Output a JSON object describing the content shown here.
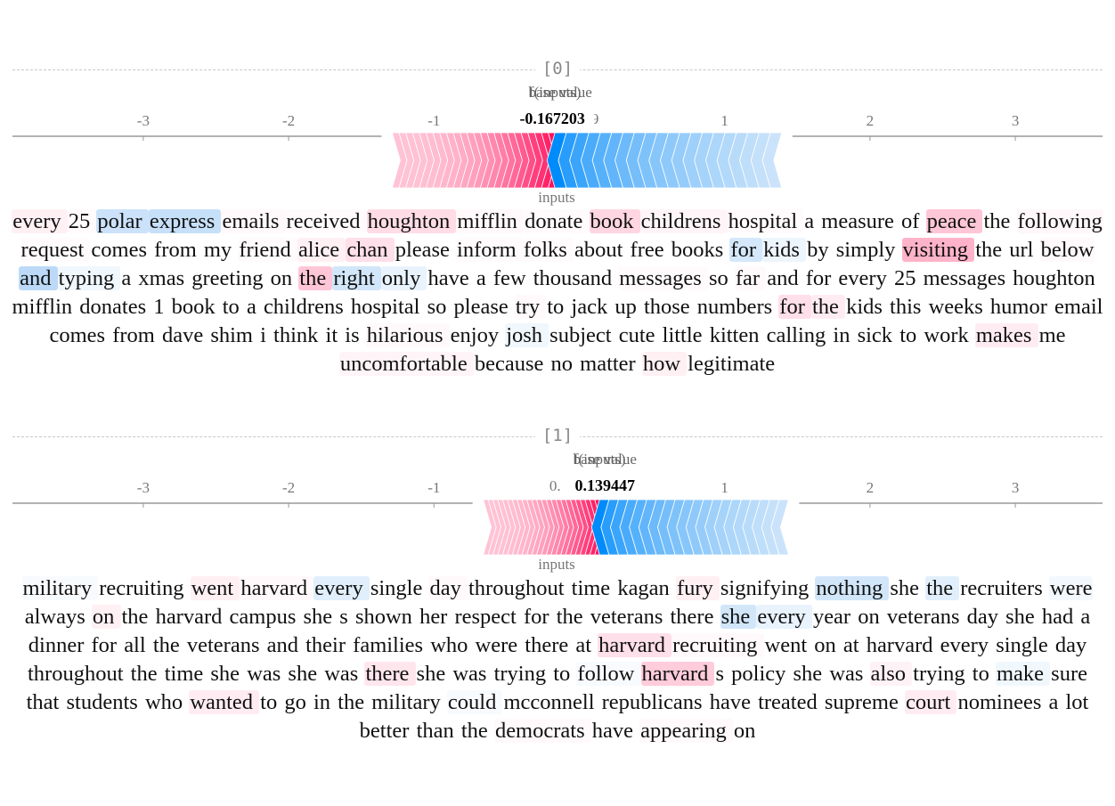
{
  "chart_data": [
    {
      "type": "force-plot",
      "title": "[0]",
      "x_ticks": [
        -3,
        -2,
        -1,
        1,
        2,
        3
      ],
      "xlim": [
        -3.9,
        3.6
      ],
      "fx_label": "f(inputs)",
      "base_label": "base value",
      "fx_value": "-0.167203",
      "base_value_text": "0.379",
      "fx": -0.167203,
      "base": 0.379,
      "neg_extent": 1.12,
      "pos_extent": 1.56,
      "inputs_label": "inputs",
      "colors": {
        "pos_strong": "#ff0051",
        "pos_light": "#ffc3d5",
        "neg_strong": "#008bfb",
        "neg_light": "#d1e6fa"
      },
      "tokens": [
        {
          "t": "every ",
          "v": 0.12
        },
        {
          "t": "25 ",
          "v": 0.04
        },
        {
          "t": "polar ",
          "v": -0.35
        },
        {
          "t": "express ",
          "v": -0.38
        },
        {
          "t": "emails ",
          "v": 0.05
        },
        {
          "t": "received ",
          "v": 0.03
        },
        {
          "t": "houghton ",
          "v": 0.28
        },
        {
          "t": "mifflin ",
          "v": 0.05
        },
        {
          "t": "donate ",
          "v": 0.03
        },
        {
          "t": "book ",
          "v": 0.32
        },
        {
          "t": "childrens ",
          "v": 0.08
        },
        {
          "t": "hospital ",
          "v": 0.04
        },
        {
          "t": "a ",
          "v": 0.0
        },
        {
          "t": "measure ",
          "v": 0.0
        },
        {
          "t": "of ",
          "v": 0.0
        },
        {
          "t": "peace ",
          "v": 0.45
        },
        {
          "t": "the ",
          "v": 0.0
        },
        {
          "t": "following ",
          "v": 0.06
        },
        {
          "t": "request ",
          "v": 0.03
        },
        {
          "t": "comes ",
          "v": 0.0
        },
        {
          "t": "from ",
          "v": 0.0
        },
        {
          "t": "my ",
          "v": 0.0
        },
        {
          "t": "friend ",
          "v": 0.03
        },
        {
          "t": "alice ",
          "v": 0.12
        },
        {
          "t": "chan ",
          "v": 0.25
        },
        {
          "t": "please ",
          "v": 0.0
        },
        {
          "t": "inform ",
          "v": 0.03
        },
        {
          "t": "folks ",
          "v": 0.03
        },
        {
          "t": "about ",
          "v": 0.0
        },
        {
          "t": "free ",
          "v": 0.0
        },
        {
          "t": "books ",
          "v": 0.0
        },
        {
          "t": "for ",
          "v": -0.28
        },
        {
          "t": "kids ",
          "v": -0.12
        },
        {
          "t": "by ",
          "v": 0.0
        },
        {
          "t": "simply ",
          "v": 0.0
        },
        {
          "t": "visiting ",
          "v": 0.6
        },
        {
          "t": "the ",
          "v": 0.0
        },
        {
          "t": "url ",
          "v": 0.0
        },
        {
          "t": "below ",
          "v": 0.05
        },
        {
          "t": "and ",
          "v": -0.45
        },
        {
          "t": "typing ",
          "v": -0.1
        },
        {
          "t": "a ",
          "v": 0.0
        },
        {
          "t": "xmas ",
          "v": 0.0
        },
        {
          "t": "greeting ",
          "v": 0.0
        },
        {
          "t": "on ",
          "v": 0.0
        },
        {
          "t": "the ",
          "v": 0.45
        },
        {
          "t": "right ",
          "v": -0.3
        },
        {
          "t": "only ",
          "v": -0.15
        },
        {
          "t": "have ",
          "v": 0.0
        },
        {
          "t": "a ",
          "v": 0.0
        },
        {
          "t": "few ",
          "v": 0.0
        },
        {
          "t": "thousand ",
          "v": 0.0
        },
        {
          "t": "messages ",
          "v": 0.03
        },
        {
          "t": "so ",
          "v": 0.0
        },
        {
          "t": "far ",
          "v": 0.05
        },
        {
          "t": "and ",
          "v": 0.0
        },
        {
          "t": "for ",
          "v": 0.0
        },
        {
          "t": "every ",
          "v": 0.0
        },
        {
          "t": "25 ",
          "v": 0.0
        },
        {
          "t": "messages ",
          "v": 0.0
        },
        {
          "t": "houghton ",
          "v": 0.0
        },
        {
          "t": "mifflin ",
          "v": 0.0
        },
        {
          "t": "donates ",
          "v": 0.0
        },
        {
          "t": "1 ",
          "v": 0.0
        },
        {
          "t": "book ",
          "v": 0.0
        },
        {
          "t": "to ",
          "v": 0.0
        },
        {
          "t": "a ",
          "v": 0.0
        },
        {
          "t": "childrens ",
          "v": 0.0
        },
        {
          "t": "hospital ",
          "v": 0.0
        },
        {
          "t": "so ",
          "v": 0.0
        },
        {
          "t": "please ",
          "v": 0.0
        },
        {
          "t": "try ",
          "v": 0.05
        },
        {
          "t": "to ",
          "v": 0.0
        },
        {
          "t": "jack ",
          "v": 0.0
        },
        {
          "t": "up ",
          "v": 0.0
        },
        {
          "t": "those ",
          "v": 0.0
        },
        {
          "t": "numbers ",
          "v": 0.0
        },
        {
          "t": "for ",
          "v": 0.25
        },
        {
          "t": "the ",
          "v": 0.15
        },
        {
          "t": "kids ",
          "v": 0.0
        },
        {
          "t": "this ",
          "v": 0.0
        },
        {
          "t": "weeks ",
          "v": 0.0
        },
        {
          "t": "humor ",
          "v": 0.0
        },
        {
          "t": "email ",
          "v": 0.0
        },
        {
          "t": "comes ",
          "v": 0.0
        },
        {
          "t": "from ",
          "v": 0.0
        },
        {
          "t": "dave ",
          "v": 0.0
        },
        {
          "t": "shim ",
          "v": 0.0
        },
        {
          "t": "i ",
          "v": 0.0
        },
        {
          "t": "think ",
          "v": 0.0
        },
        {
          "t": "it ",
          "v": 0.0
        },
        {
          "t": "is ",
          "v": 0.0
        },
        {
          "t": "hilarious ",
          "v": 0.05
        },
        {
          "t": "enjoy ",
          "v": 0.0
        },
        {
          "t": "josh ",
          "v": -0.1
        },
        {
          "t": "subject ",
          "v": 0.0
        },
        {
          "t": "cute ",
          "v": 0.0
        },
        {
          "t": "little ",
          "v": 0.0
        },
        {
          "t": "kitten ",
          "v": 0.0
        },
        {
          "t": "calling ",
          "v": 0.0
        },
        {
          "t": "in ",
          "v": 0.0
        },
        {
          "t": "sick ",
          "v": 0.0
        },
        {
          "t": "to ",
          "v": 0.0
        },
        {
          "t": "work ",
          "v": 0.0
        },
        {
          "t": "makes ",
          "v": 0.15
        },
        {
          "t": "me ",
          "v": 0.0
        },
        {
          "t": "uncomfortable ",
          "v": 0.08
        },
        {
          "t": "because ",
          "v": 0.0
        },
        {
          "t": "no ",
          "v": 0.0
        },
        {
          "t": "matter ",
          "v": 0.0
        },
        {
          "t": "how ",
          "v": 0.12
        },
        {
          "t": "legitimate",
          "v": 0.0
        }
      ]
    },
    {
      "type": "force-plot",
      "title": "[1]",
      "x_ticks": [
        -3,
        -2,
        -1,
        1,
        2,
        3
      ],
      "xlim": [
        -3.9,
        3.6
      ],
      "fx_label": "f(inputs)",
      "base_label": "base value",
      "fx_value": "0.139447",
      "base_value_text": "0.",
      "fx": 0.139447,
      "base": 0.379,
      "neg_extent": 0.8,
      "pos_extent": 1.3,
      "inputs_label": "inputs",
      "colors": {
        "pos_strong": "#ff0051",
        "pos_light": "#ffc3d5",
        "neg_strong": "#008bfb",
        "neg_light": "#d1e6fa"
      },
      "tokens": [
        {
          "t": "military ",
          "v": -0.05
        },
        {
          "t": "recruiting ",
          "v": 0.0
        },
        {
          "t": "went ",
          "v": 0.12
        },
        {
          "t": "harvard ",
          "v": 0.05
        },
        {
          "t": "every ",
          "v": -0.2
        },
        {
          "t": "single ",
          "v": 0.0
        },
        {
          "t": "day ",
          "v": 0.05
        },
        {
          "t": "throughout ",
          "v": 0.0
        },
        {
          "t": "time ",
          "v": 0.0
        },
        {
          "t": "kagan ",
          "v": 0.0
        },
        {
          "t": "fury ",
          "v": 0.12
        },
        {
          "t": "signifying ",
          "v": 0.0
        },
        {
          "t": "nothing ",
          "v": -0.3
        },
        {
          "t": "she ",
          "v": 0.0
        },
        {
          "t": "the ",
          "v": -0.2
        },
        {
          "t": "recruiters ",
          "v": 0.0
        },
        {
          "t": "were ",
          "v": -0.08
        },
        {
          "t": "always ",
          "v": 0.0
        },
        {
          "t": "on ",
          "v": 0.12
        },
        {
          "t": "the ",
          "v": 0.0
        },
        {
          "t": "harvard ",
          "v": 0.0
        },
        {
          "t": "campus ",
          "v": 0.0
        },
        {
          "t": "she ",
          "v": 0.0
        },
        {
          "t": "s ",
          "v": 0.0
        },
        {
          "t": "shown ",
          "v": 0.0
        },
        {
          "t": "her ",
          "v": 0.0
        },
        {
          "t": "respect ",
          "v": 0.0
        },
        {
          "t": "for ",
          "v": 0.0
        },
        {
          "t": "the ",
          "v": 0.0
        },
        {
          "t": "veterans ",
          "v": 0.0
        },
        {
          "t": "there ",
          "v": 0.0
        },
        {
          "t": "she ",
          "v": -0.3
        },
        {
          "t": "every ",
          "v": -0.15
        },
        {
          "t": "year ",
          "v": 0.0
        },
        {
          "t": "on ",
          "v": 0.0
        },
        {
          "t": "veterans ",
          "v": 0.0
        },
        {
          "t": "day ",
          "v": 0.0
        },
        {
          "t": "she ",
          "v": 0.0
        },
        {
          "t": "had ",
          "v": 0.0
        },
        {
          "t": "a ",
          "v": 0.0
        },
        {
          "t": "dinner ",
          "v": 0.0
        },
        {
          "t": "for ",
          "v": 0.0
        },
        {
          "t": "all ",
          "v": 0.0
        },
        {
          "t": "the ",
          "v": 0.0
        },
        {
          "t": "veterans ",
          "v": 0.0
        },
        {
          "t": "and ",
          "v": 0.0
        },
        {
          "t": "their ",
          "v": 0.0
        },
        {
          "t": "families ",
          "v": 0.0
        },
        {
          "t": "who ",
          "v": 0.0
        },
        {
          "t": "were ",
          "v": 0.0
        },
        {
          "t": "there ",
          "v": 0.0
        },
        {
          "t": "at ",
          "v": 0.0
        },
        {
          "t": "harvard ",
          "v": 0.25
        },
        {
          "t": "recruiting ",
          "v": 0.05
        },
        {
          "t": "went ",
          "v": 0.0
        },
        {
          "t": "on ",
          "v": 0.0
        },
        {
          "t": "at ",
          "v": 0.0
        },
        {
          "t": "harvard ",
          "v": 0.0
        },
        {
          "t": "every ",
          "v": 0.0
        },
        {
          "t": "single ",
          "v": 0.0
        },
        {
          "t": "day ",
          "v": 0.0
        },
        {
          "t": "throughout ",
          "v": 0.0
        },
        {
          "t": "the ",
          "v": 0.0
        },
        {
          "t": "time ",
          "v": 0.0
        },
        {
          "t": "she ",
          "v": 0.0
        },
        {
          "t": "was ",
          "v": 0.0
        },
        {
          "t": "she ",
          "v": 0.0
        },
        {
          "t": "was ",
          "v": 0.0
        },
        {
          "t": "there ",
          "v": 0.2
        },
        {
          "t": "she ",
          "v": 0.0
        },
        {
          "t": "was ",
          "v": 0.0
        },
        {
          "t": "trying ",
          "v": 0.0
        },
        {
          "t": "to ",
          "v": 0.0
        },
        {
          "t": "follow ",
          "v": -0.05
        },
        {
          "t": "harvard ",
          "v": 0.4
        },
        {
          "t": "s ",
          "v": 0.0
        },
        {
          "t": "policy ",
          "v": 0.0
        },
        {
          "t": "she ",
          "v": 0.0
        },
        {
          "t": "was ",
          "v": 0.0
        },
        {
          "t": "also ",
          "v": 0.1
        },
        {
          "t": "trying ",
          "v": 0.0
        },
        {
          "t": "to ",
          "v": 0.0
        },
        {
          "t": "make ",
          "v": -0.1
        },
        {
          "t": "sure ",
          "v": 0.0
        },
        {
          "t": "that ",
          "v": 0.0
        },
        {
          "t": "students ",
          "v": 0.0
        },
        {
          "t": "who ",
          "v": 0.0
        },
        {
          "t": "wanted ",
          "v": 0.15
        },
        {
          "t": "to ",
          "v": 0.0
        },
        {
          "t": "go ",
          "v": 0.0
        },
        {
          "t": "in ",
          "v": 0.0
        },
        {
          "t": "the ",
          "v": 0.0
        },
        {
          "t": "military ",
          "v": 0.0
        },
        {
          "t": "could ",
          "v": -0.05
        },
        {
          "t": "mcconnell ",
          "v": 0.0
        },
        {
          "t": "republicans ",
          "v": 0.0
        },
        {
          "t": "have ",
          "v": 0.0
        },
        {
          "t": "treated ",
          "v": 0.0
        },
        {
          "t": "supreme ",
          "v": 0.0
        },
        {
          "t": "court ",
          "v": 0.15
        },
        {
          "t": "nominees ",
          "v": 0.0
        },
        {
          "t": "a ",
          "v": 0.0
        },
        {
          "t": "lot ",
          "v": 0.0
        },
        {
          "t": "better ",
          "v": 0.0
        },
        {
          "t": "than ",
          "v": 0.0
        },
        {
          "t": "the ",
          "v": 0.0
        },
        {
          "t": "democrats ",
          "v": 0.05
        },
        {
          "t": "have ",
          "v": 0.0
        },
        {
          "t": "appearing ",
          "v": 0.05
        },
        {
          "t": "on",
          "v": 0.0
        }
      ]
    }
  ]
}
